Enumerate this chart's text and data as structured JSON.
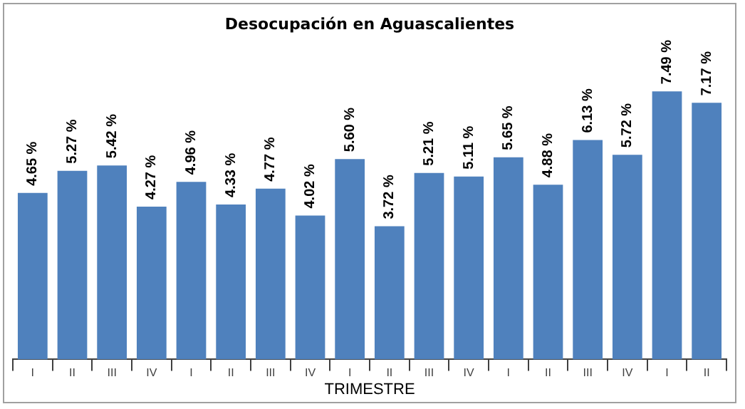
{
  "chart_data": {
    "type": "bar",
    "title": "Desocupación en Aguascalientes",
    "xlabel": "TRIMESTRE",
    "categories": [
      "I",
      "II",
      "III",
      "IV",
      "I",
      "II",
      "III",
      "IV",
      "I",
      "II",
      "III",
      "IV",
      "I",
      "II",
      "III",
      "IV",
      "I",
      "II"
    ],
    "values": [
      4.65,
      5.27,
      5.42,
      4.27,
      4.96,
      4.33,
      4.77,
      4.02,
      5.6,
      3.72,
      5.21,
      5.11,
      5.65,
      4.88,
      6.13,
      5.72,
      7.49,
      7.17
    ],
    "value_labels": [
      "4.65 %",
      "5.27 %",
      "5.42 %",
      "4.27 %",
      "4.96 %",
      "4.33 %",
      "4.77 %",
      "4.02 %",
      "5.60 %",
      "3.72 %",
      "5.21 %",
      "5.11 %",
      "5.65 %",
      "4.88 %",
      "6.13 %",
      "5.72 %",
      "7.49 %",
      "7.17 %"
    ],
    "color": "#4f81bd",
    "tick_labels": "x",
    "grid": false,
    "legend": false
  }
}
